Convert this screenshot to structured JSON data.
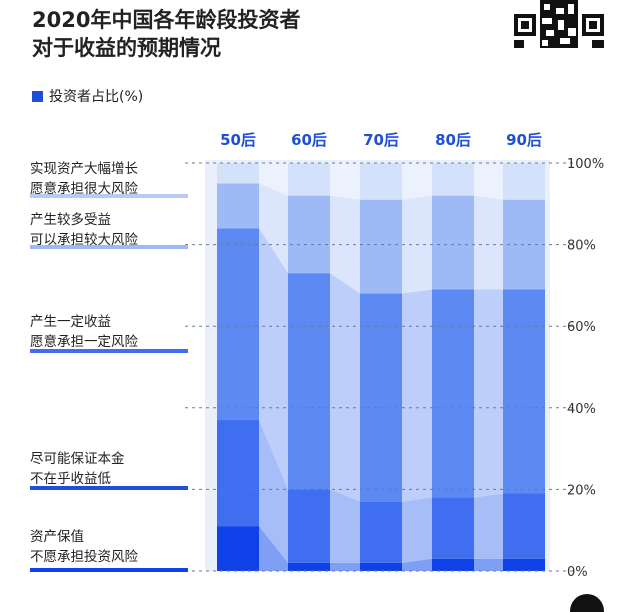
{
  "title_line1": "2020年中国各年龄段投资者",
  "title_line2": "对于收益的预期情况",
  "legend_label": "投资者占比(%)",
  "colors": {
    "accent": "#1e4fd6",
    "bg_band": "#eaf0fb",
    "seg": [
      "#1040e8",
      "#3f6ff0",
      "#5c89f2",
      "#9db9f6",
      "#d4e1fb"
    ],
    "gap": [
      "#7f9ff5",
      "#a6bdf8",
      "#bccef9",
      "#dbe5fc",
      "#ecf2fd"
    ]
  },
  "chart_data": {
    "type": "bar",
    "stacked": true,
    "categories": [
      "50后",
      "60后",
      "70后",
      "80后",
      "90后"
    ],
    "y_ticks": [
      "0%",
      "20%",
      "40%",
      "60%",
      "80%",
      "100%"
    ],
    "ylim": [
      0,
      100
    ],
    "series": [
      {
        "name": "资产保值 不愿承担投资风险",
        "values": [
          11,
          2,
          2,
          3,
          3
        ]
      },
      {
        "name": "尽可能保证本金 不在乎收益低",
        "values": [
          26,
          18,
          15,
          15,
          16
        ]
      },
      {
        "name": "产生一定收益 愿意承担一定风险",
        "values": [
          47,
          53,
          51,
          51,
          50
        ]
      },
      {
        "name": "产生较多受益 可以承担较大风险",
        "values": [
          11,
          19,
          23,
          23,
          22
        ]
      },
      {
        "name": "实现资产大幅增长 愿意承担很大风险",
        "values": [
          5,
          8,
          9,
          8,
          9
        ]
      }
    ]
  },
  "labels": [
    {
      "l1": "实现资产大幅增长",
      "l2": "愿意承担很大风险"
    },
    {
      "l1": "产生较多受益",
      "l2": "可以承担较大风险"
    },
    {
      "l1": "产生一定收益",
      "l2": "愿意承担一定风险"
    },
    {
      "l1": "尽可能保证本金",
      "l2": "不在乎收益低"
    },
    {
      "l1": "资产保值",
      "l2": "不愿承担投资风险"
    }
  ]
}
